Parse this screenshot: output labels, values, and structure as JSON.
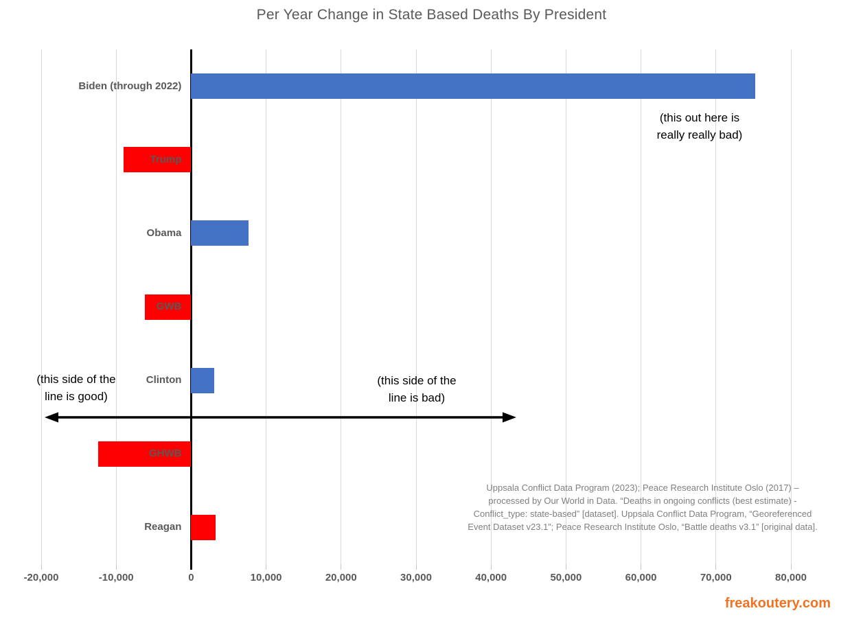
{
  "title": "Per Year Change in State Based Deaths By President",
  "chart_data": {
    "type": "bar",
    "orientation": "horizontal",
    "title": "Per Year Change in State Based Deaths By President",
    "categories": [
      "Biden (through 2022)",
      "Trump",
      "Obama",
      "GWB",
      "Clinton",
      "GHWB",
      "Reagan"
    ],
    "values": [
      75200,
      -9000,
      7700,
      -6200,
      3100,
      -12400,
      3300
    ],
    "bar_colors": [
      "#4472c4",
      "#ff0000",
      "#4472c4",
      "#ff0000",
      "#4472c4",
      "#ff0000",
      "#ff0000"
    ],
    "xlim": [
      -20000,
      80000
    ],
    "x_ticks": [
      -20000,
      -10000,
      0,
      10000,
      20000,
      30000,
      40000,
      50000,
      60000,
      70000,
      80000
    ],
    "x_tick_labels": [
      "-20,000",
      "-10,000",
      "0",
      "10,000",
      "20,000",
      "30,000",
      "40,000",
      "50,000",
      "60,000",
      "70,000",
      "80,000"
    ],
    "grid": true,
    "legend": false,
    "xlabel": "",
    "ylabel": ""
  },
  "annotations": {
    "biden_note": "(this out here is\nreally really bad)",
    "left_note": "(this side of the\nline is good)",
    "right_note": "(this side of the\nline is bad)"
  },
  "source_note": {
    "lines": [
      "Uppsala Conflict Data Program (2023); Peace Research Institute Oslo (2017) –",
      "processed by Our World in Data. “Deaths in ongoing conflicts (best estimate) -",
      "Conflict_type: state-based” [dataset]. Uppsala Conflict Data Program, “Georeferenced",
      "Event Dataset v23.1”; Peace Research Institute Oslo, “Battle deaths v3.1” [original data]."
    ]
  },
  "watermark": "freakoutery.com",
  "colors": {
    "democrat_bar": "#4472c4",
    "republican_bar": "#ff0000",
    "label_gray": "#595959",
    "gridline": "#d9d9d9",
    "source_gray": "#7f7f7f",
    "watermark_orange": "#ee7423",
    "annotation_black": "#000000"
  }
}
